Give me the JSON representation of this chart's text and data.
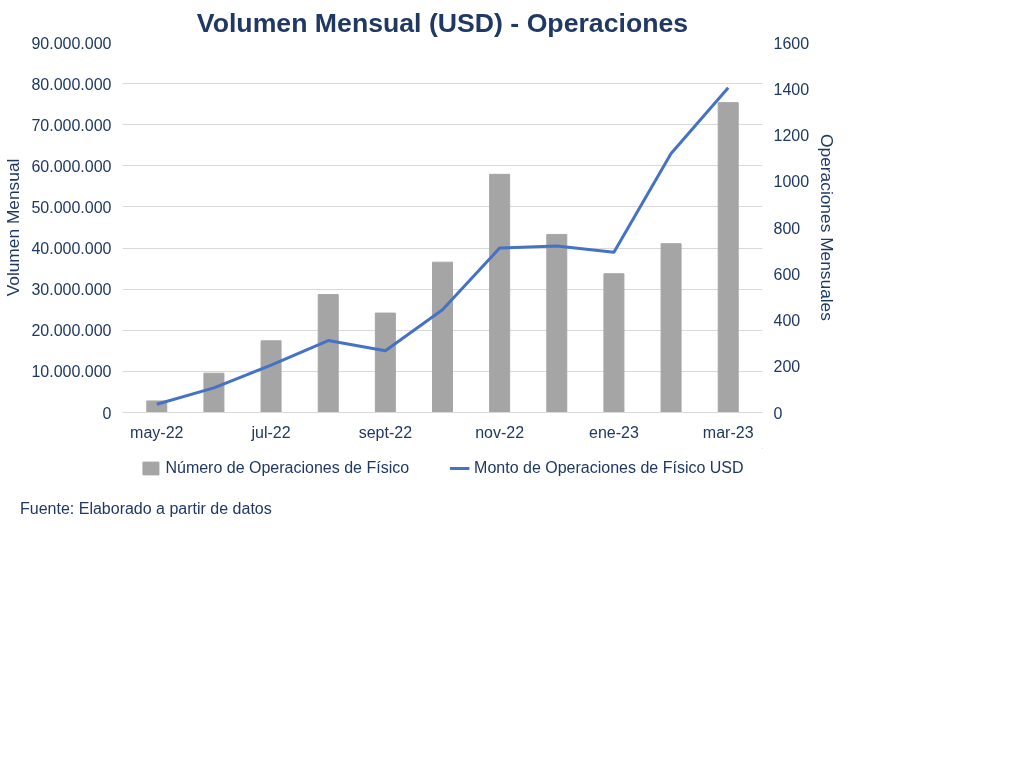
{
  "chart_data": {
    "type": "bar",
    "title": "Volumen Mensual (USD) - Operaciones",
    "categories": [
      "may-22",
      null,
      "jul-22",
      null,
      "sept-22",
      null,
      "nov-22",
      null,
      "ene-23",
      null,
      "mar-23"
    ],
    "series": [
      {
        "name": "Número de Operaciones de Físico",
        "axis": "y2",
        "color": "#a5a5a5",
        "values": [
          50,
          170,
          310,
          510,
          430,
          650,
          1030,
          770,
          600,
          730,
          1340
        ]
      },
      {
        "name": "Monto de Operaciones de Físico USD",
        "type": "line",
        "axis": "y",
        "color": "#4472c4",
        "values": [
          2000000,
          6000000,
          11500000,
          17500000,
          15000000,
          25000000,
          40000000,
          40500000,
          39000000,
          63000000,
          79000000
        ]
      }
    ],
    "ylabel": "Volumen Mensual",
    "y2label": "Operaciones Mensuales",
    "ylim": [
      0,
      90000000
    ],
    "yticks": [
      {
        "value": 0,
        "label": "0"
      },
      {
        "value": 10000000,
        "label": "10.000.000"
      },
      {
        "value": 20000000,
        "label": "20.000.000"
      },
      {
        "value": 30000000,
        "label": "30.000.000"
      },
      {
        "value": 40000000,
        "label": "40.000.000"
      },
      {
        "value": 50000000,
        "label": "50.000.000"
      },
      {
        "value": 60000000,
        "label": "60.000.000"
      },
      {
        "value": 70000000,
        "label": "70.000.000"
      },
      {
        "value": 80000000,
        "label": "80.000.000"
      },
      {
        "value": 90000000,
        "label": "90.000.000"
      }
    ],
    "y2lim": [
      0,
      1600
    ],
    "y2ticks": [
      0,
      200,
      400,
      600,
      800,
      1000,
      1200,
      1400,
      1600
    ],
    "grid": "y",
    "legend": "bottom",
    "marker": "none",
    "line_style": "solid",
    "annotations": [
      "Fuente: Elaborado a partir de datos"
    ]
  }
}
